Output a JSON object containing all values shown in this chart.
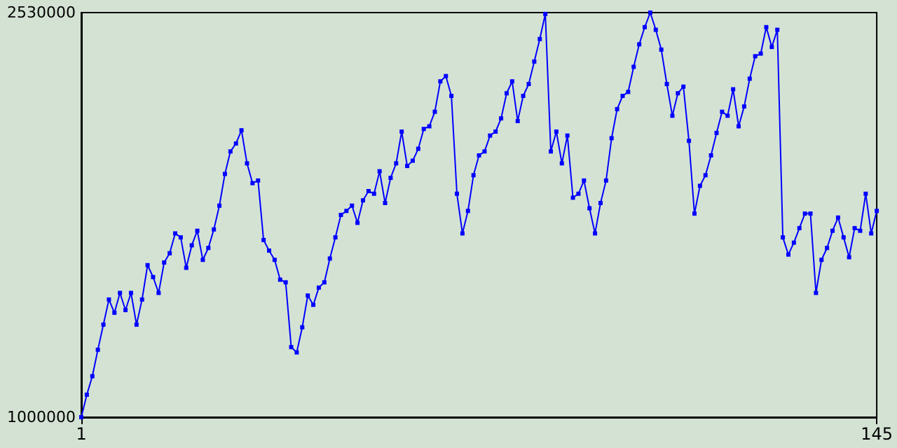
{
  "chart_data": {
    "type": "line",
    "x": [
      1,
      2,
      3,
      4,
      5,
      6,
      7,
      8,
      9,
      10,
      11,
      12,
      13,
      14,
      15,
      16,
      17,
      18,
      19,
      20,
      21,
      22,
      23,
      24,
      25,
      26,
      27,
      28,
      29,
      30,
      31,
      32,
      33,
      34,
      35,
      36,
      37,
      38,
      39,
      40,
      41,
      42,
      43,
      44,
      45,
      46,
      47,
      48,
      49,
      50,
      51,
      52,
      53,
      54,
      55,
      56,
      57,
      58,
      59,
      60,
      61,
      62,
      63,
      64,
      65,
      66,
      67,
      68,
      69,
      70,
      71,
      72,
      73,
      74,
      75,
      76,
      77,
      78,
      79,
      80,
      81,
      82,
      83,
      84,
      85,
      86,
      87,
      88,
      89,
      90,
      91,
      92,
      93,
      94,
      95,
      96,
      97,
      98,
      99,
      100,
      101,
      102,
      103,
      104,
      105,
      106,
      107,
      108,
      109,
      110,
      111,
      112,
      113,
      114,
      115,
      116,
      117,
      118,
      119,
      120,
      121,
      122,
      123,
      124,
      125,
      126,
      127,
      128,
      129,
      130,
      131,
      132,
      133,
      134,
      135,
      136,
      137,
      138,
      139,
      140,
      141,
      142,
      143,
      144,
      145
    ],
    "series": [
      {
        "color": "#0000ff",
        "values": [
          1000000,
          1085000,
          1155000,
          1255000,
          1350000,
          1445000,
          1395000,
          1470000,
          1405000,
          1470000,
          1350000,
          1445000,
          1575000,
          1530000,
          1470000,
          1585000,
          1620000,
          1695000,
          1680000,
          1565000,
          1650000,
          1705000,
          1595000,
          1640000,
          1710000,
          1800000,
          1920000,
          2005000,
          2035000,
          2085000,
          1960000,
          1885000,
          1895000,
          1670000,
          1630000,
          1595000,
          1520000,
          1510000,
          1265000,
          1245000,
          1340000,
          1460000,
          1425000,
          1490000,
          1510000,
          1600000,
          1680000,
          1765000,
          1780000,
          1800000,
          1735000,
          1820000,
          1855000,
          1845000,
          1930000,
          1810000,
          1905000,
          1960000,
          2080000,
          1950000,
          1970000,
          2015000,
          2090000,
          2100000,
          2155000,
          2270000,
          2290000,
          2215000,
          1845000,
          1695000,
          1780000,
          1915000,
          1990000,
          2005000,
          2065000,
          2080000,
          2130000,
          2225000,
          2270000,
          2120000,
          2215000,
          2260000,
          2345000,
          2430000,
          2525000,
          2005000,
          2080000,
          1960000,
          2065000,
          1830000,
          1845000,
          1895000,
          1790000,
          1695000,
          1810000,
          1895000,
          2055000,
          2165000,
          2215000,
          2230000,
          2325000,
          2410000,
          2475000,
          2530000,
          2465000,
          2390000,
          2260000,
          2140000,
          2225000,
          2250000,
          2045000,
          1770000,
          1875000,
          1915000,
          1990000,
          2075000,
          2155000,
          2140000,
          2240000,
          2100000,
          2175000,
          2280000,
          2365000,
          2375000,
          2475000,
          2400000,
          2465000,
          1680000,
          1615000,
          1660000,
          1715000,
          1770000,
          1770000,
          1470000,
          1595000,
          1640000,
          1705000,
          1755000,
          1680000,
          1605000,
          1715000,
          1705000,
          1845000,
          1695000,
          1780000
        ]
      }
    ],
    "xlim": [
      1,
      145
    ],
    "xticks": [
      1,
      145
    ],
    "ylim": [
      1000000,
      2530000
    ],
    "yticks": [
      {
        "value": 1000000,
        "label": "1000000"
      },
      {
        "value": 2530000,
        "label": "2530000"
      }
    ],
    "marker": "square",
    "line_style": "solid",
    "grid": false
  }
}
